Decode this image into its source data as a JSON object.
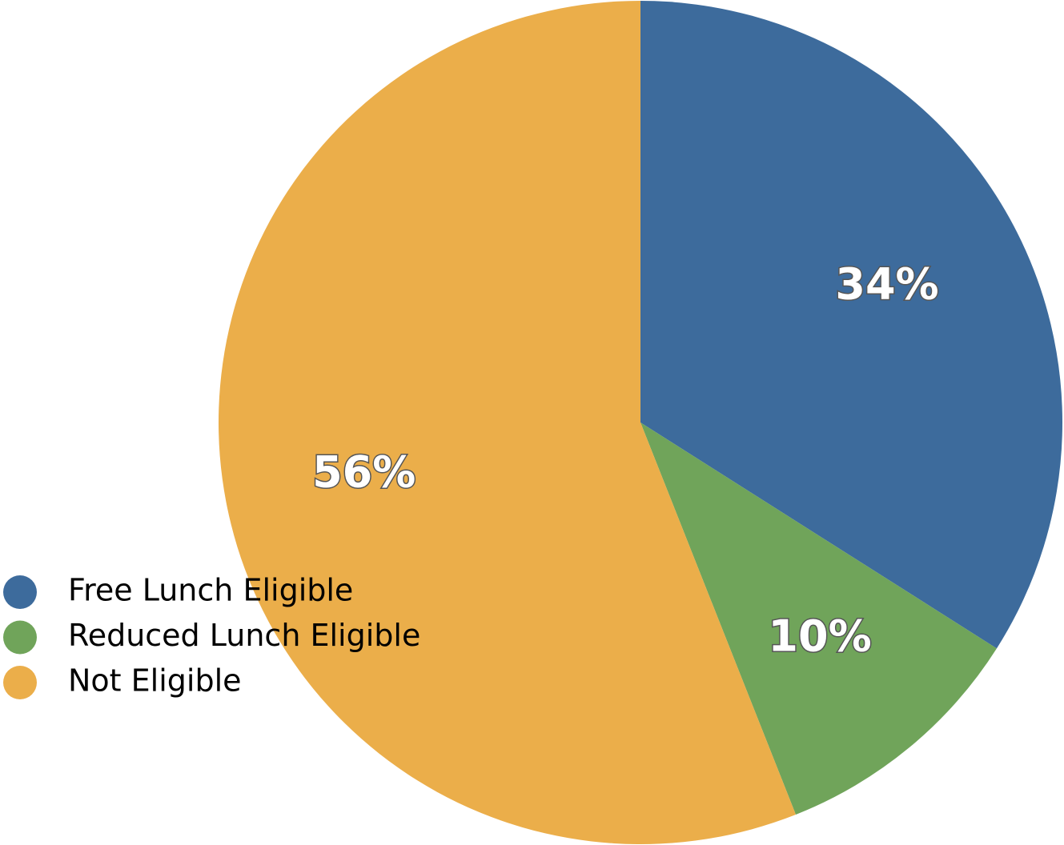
{
  "chart_data": {
    "type": "pie",
    "categories": [
      "Free Lunch Eligible",
      "Reduced Lunch Eligible",
      "Not Eligible"
    ],
    "values": [
      34,
      10,
      56
    ],
    "value_labels": [
      "34%",
      "10%",
      "56%"
    ],
    "colors": [
      "#3d6b9c",
      "#70a45a",
      "#ebae4a"
    ],
    "legend": "lower-left"
  }
}
